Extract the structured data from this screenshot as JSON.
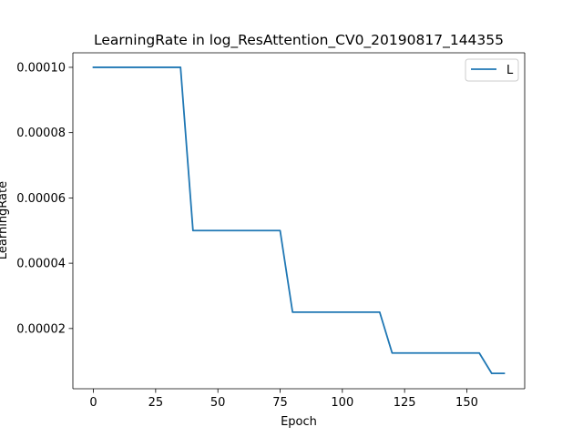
{
  "chart_data": {
    "type": "line",
    "title": "LearningRate in log_ResAttention_CV0_20190817_144355",
    "xlabel": "Epoch",
    "ylabel": "LearningRate",
    "xlim": [
      -8.25,
      173.25
    ],
    "ylim": [
      1.55e-06,
      0.00010445
    ],
    "x_ticks": [
      0,
      25,
      50,
      75,
      100,
      125,
      150
    ],
    "y_ticks": [
      2e-05,
      4e-05,
      6e-05,
      8e-05,
      0.0001
    ],
    "y_tick_labels": [
      "0.00002",
      "0.00004",
      "0.00006",
      "0.00008",
      "0.00010"
    ],
    "grid": false,
    "legend": {
      "position": "upper-right",
      "entries": [
        "L"
      ]
    },
    "series": [
      {
        "name": "L",
        "color": "#1f77b4",
        "x": [
          0,
          35,
          40,
          75,
          80,
          115,
          120,
          155,
          160,
          165
        ],
        "y": [
          0.0001,
          0.0001,
          5e-05,
          5e-05,
          2.5e-05,
          2.5e-05,
          1.25e-05,
          1.25e-05,
          6.25e-06,
          6.25e-06
        ]
      }
    ]
  }
}
